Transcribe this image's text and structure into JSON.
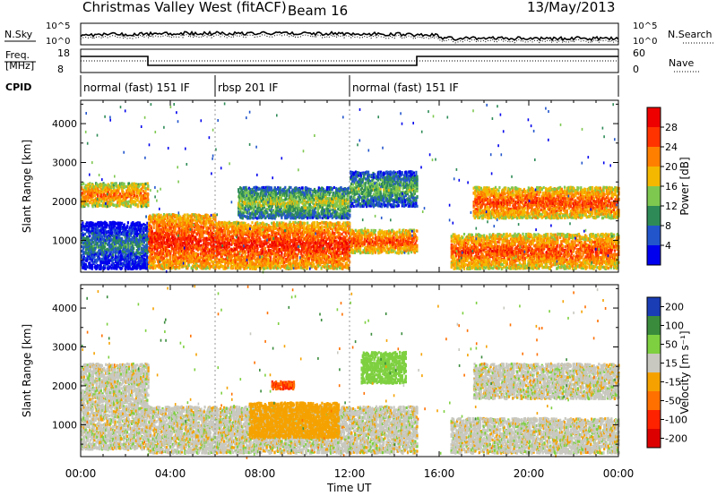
{
  "header": {
    "station": "Christmas Valley West (fitACF)",
    "beam": "Beam 16",
    "date": "13/May/2013"
  },
  "strips": {
    "nsky_label": "N.Sky",
    "nsearch_label": "N.Search",
    "noise_ticks": [
      "10^5",
      "10^0"
    ],
    "freq_label_1": "Freq.",
    "freq_label_2": "[MHz]",
    "freq_ticks": [
      "18",
      "8"
    ],
    "nave_label": "Nave",
    "nave_ticks": [
      "60",
      "0"
    ],
    "cpid_label": "CPID",
    "cpid_segments": [
      {
        "label": "normal (fast) 151 IF",
        "start_hour": 0,
        "end_hour": 6
      },
      {
        "label": "rbsp 201 IF",
        "start_hour": 6,
        "end_hour": 12
      },
      {
        "label": "normal (fast) 151 IF",
        "start_hour": 12,
        "end_hour": 24
      }
    ],
    "freq_steps": [
      {
        "start_hour": 0,
        "end_hour": 3,
        "level": "high"
      },
      {
        "start_hour": 3,
        "end_hour": 15,
        "level": "low"
      },
      {
        "start_hour": 15,
        "end_hour": 24,
        "level": "high"
      }
    ]
  },
  "chart_data": [
    {
      "type": "heatmap",
      "panel": "power",
      "ylabel": "Slant Range [km]",
      "xlim": [
        0,
        24
      ],
      "ylim": [
        180,
        4600
      ],
      "yticks": [
        1000,
        2000,
        3000,
        4000
      ],
      "colorbar_label": "Power [dB]",
      "colorbar_ticks": [
        4,
        8,
        12,
        16,
        20,
        24,
        28
      ],
      "colorbar_colors": [
        "#0000ee",
        "#2255cc",
        "#2e8b57",
        "#7ec850",
        "#f5b800",
        "#ff8000",
        "#ff3300",
        "#ee0000"
      ],
      "echo_bands": [
        {
          "start_hour": 0.0,
          "end_hour": 3.0,
          "range_km": [
            1900,
            2500
          ],
          "power_db": 24
        },
        {
          "start_hour": 0.0,
          "end_hour": 3.0,
          "range_km": [
            300,
            1500
          ],
          "power_db": 10
        },
        {
          "start_hour": 3.0,
          "end_hour": 6.0,
          "range_km": [
            300,
            1700
          ],
          "power_db": 28
        },
        {
          "start_hour": 6.0,
          "end_hour": 12.0,
          "range_km": [
            300,
            1500
          ],
          "power_db": 28
        },
        {
          "start_hour": 7.0,
          "end_hour": 12.0,
          "range_km": [
            1600,
            2400
          ],
          "power_db": 16
        },
        {
          "start_hour": 12.0,
          "end_hour": 15.0,
          "range_km": [
            700,
            1300
          ],
          "power_db": 26
        },
        {
          "start_hour": 12.0,
          "end_hour": 15.0,
          "range_km": [
            1900,
            2800
          ],
          "power_db": 14
        },
        {
          "start_hour": 16.5,
          "end_hour": 24.0,
          "range_km": [
            300,
            1200
          ],
          "power_db": 26
        },
        {
          "start_hour": 17.5,
          "end_hour": 24.0,
          "range_km": [
            1600,
            2400
          ],
          "power_db": 26
        }
      ]
    },
    {
      "type": "heatmap",
      "panel": "velocity",
      "ylabel": "Slant Range [km]",
      "xlabel": "Time UT",
      "xlim": [
        0,
        24
      ],
      "xticks": [
        "00:00",
        "04:00",
        "08:00",
        "12:00",
        "16:00",
        "20:00",
        "00:00"
      ],
      "ylim": [
        180,
        4600
      ],
      "yticks": [
        1000,
        2000,
        3000,
        4000
      ],
      "colorbar_label": "Velocity [m s⁻¹]",
      "colorbar_ticks": [
        200,
        100,
        50,
        15,
        -15,
        -50,
        -100,
        -200
      ],
      "colorbar_colors": [
        "#1a3cb4",
        "#3a8c3c",
        "#7ed040",
        "#c8c8c0",
        "#f5a200",
        "#ff7000",
        "#ff2200",
        "#dd0000"
      ],
      "ground_scatter_color": "#c8c8c0",
      "echo_bands": [
        {
          "start_hour": 0.0,
          "end_hour": 3.0,
          "range_km": [
            400,
            2600
          ],
          "velocity": 0
        },
        {
          "start_hour": 3.0,
          "end_hour": 15.0,
          "range_km": [
            300,
            1500
          ],
          "velocity": 0
        },
        {
          "start_hour": 7.5,
          "end_hour": 11.5,
          "range_km": [
            700,
            1600
          ],
          "velocity": -40
        },
        {
          "start_hour": 8.5,
          "end_hour": 9.5,
          "range_km": [
            1950,
            2150
          ],
          "velocity": -150
        },
        {
          "start_hour": 12.5,
          "end_hour": 14.5,
          "range_km": [
            2100,
            2900
          ],
          "velocity": 40
        },
        {
          "start_hour": 16.5,
          "end_hour": 24.0,
          "range_km": [
            300,
            1200
          ],
          "velocity": 0
        },
        {
          "start_hour": 17.5,
          "end_hour": 24.0,
          "range_km": [
            1700,
            2600
          ],
          "velocity": 0
        }
      ]
    }
  ]
}
